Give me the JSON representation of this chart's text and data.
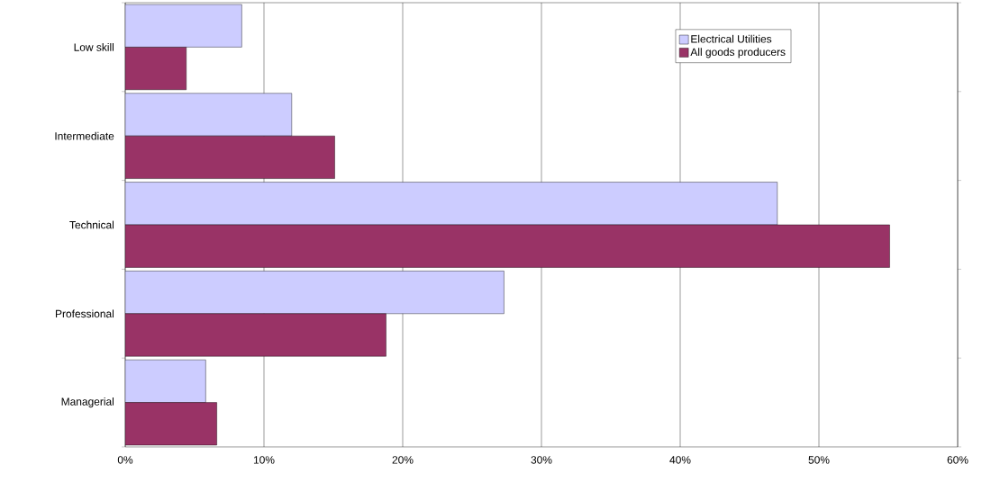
{
  "chart_data": {
    "type": "bar",
    "orientation": "horizontal",
    "categories": [
      "Low skill",
      "Intermediate",
      "Technical",
      "Professional",
      "Managerial"
    ],
    "series": [
      {
        "name": "Electrical Utilities",
        "color": "#ccccff",
        "values": [
          8.4,
          12.0,
          47.0,
          27.3,
          5.8
        ]
      },
      {
        "name": "All goods producers",
        "color": "#993366",
        "values": [
          4.4,
          15.1,
          55.1,
          18.8,
          6.6
        ]
      }
    ],
    "xlim": [
      0,
      60
    ],
    "xticks": [
      {
        "value": 0,
        "label": "0%"
      },
      {
        "value": 10,
        "label": "10%"
      },
      {
        "value": 20,
        "label": "20%"
      },
      {
        "value": 30,
        "label": "30%"
      },
      {
        "value": 40,
        "label": "40%"
      },
      {
        "value": 50,
        "label": "50%"
      },
      {
        "value": 60,
        "label": "60%"
      }
    ],
    "grid": "x",
    "legend": "top right"
  }
}
